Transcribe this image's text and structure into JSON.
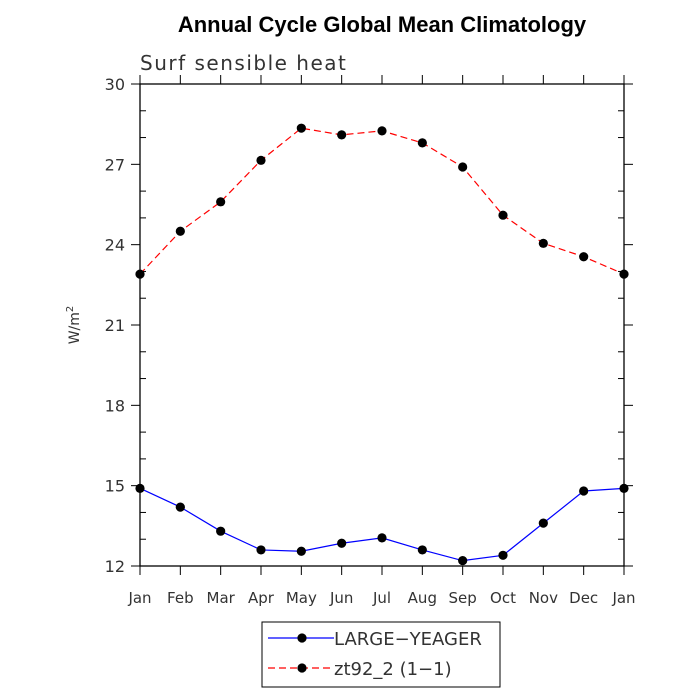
{
  "chart_data": {
    "type": "line",
    "title": "Annual Cycle Global Mean Climatology",
    "subtitle": "Surf sensible heat",
    "ylabel": "W/m",
    "ylabel_sup": "2",
    "xlabel": "",
    "categories": [
      "Jan",
      "Feb",
      "Mar",
      "Apr",
      "May",
      "Jun",
      "Jul",
      "Aug",
      "Sep",
      "Oct",
      "Nov",
      "Dec",
      "Jan"
    ],
    "ylim": [
      12,
      30
    ],
    "yticks": [
      12,
      15,
      18,
      21,
      24,
      27,
      30
    ],
    "grid": false,
    "legend_position": "bottom",
    "series": [
      {
        "name": "LARGE−YEAGER",
        "color": "#0000ff",
        "dash": "solid",
        "values": [
          14.9,
          14.2,
          13.3,
          12.6,
          12.55,
          12.85,
          13.05,
          12.6,
          12.2,
          12.4,
          13.6,
          14.8,
          14.9
        ]
      },
      {
        "name": "zt92_2 (1−1)",
        "color": "#ff0000",
        "dash": "dashed",
        "values": [
          22.9,
          24.5,
          25.6,
          27.15,
          28.35,
          28.1,
          28.25,
          27.8,
          26.9,
          25.1,
          24.05,
          23.55,
          22.9
        ]
      }
    ]
  }
}
